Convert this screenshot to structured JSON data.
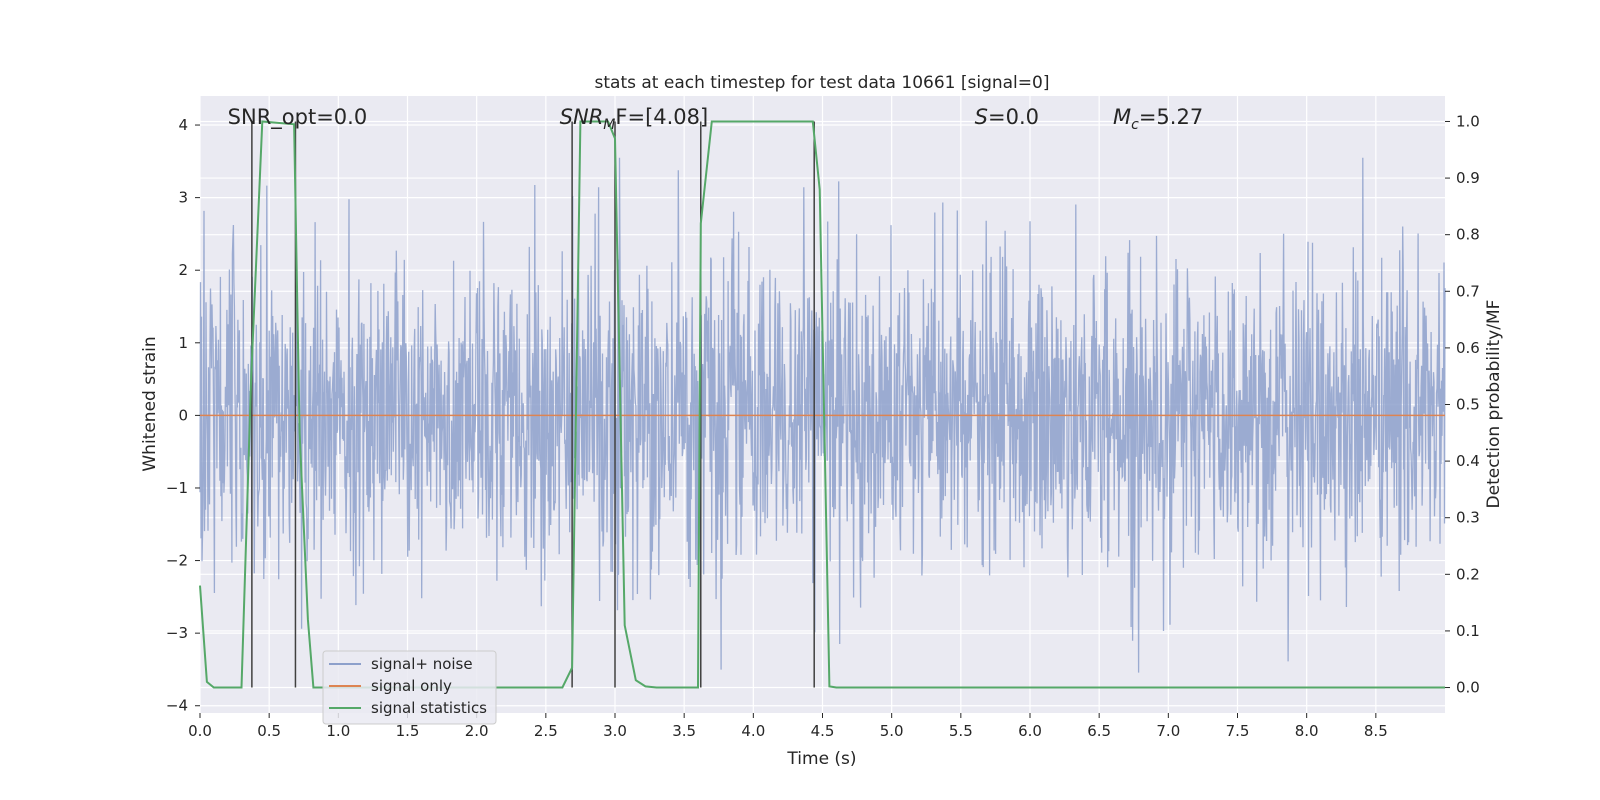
{
  "chart_data": {
    "type": "line",
    "title": "stats at each timestep for test data 10661 [signal=0]",
    "xlabel": "Time (s)",
    "ylabel": "Whitened strain",
    "y2label": "Detection probability/MF",
    "xlim": [
      0,
      9.0
    ],
    "ylim": [
      -4.1,
      4.4
    ],
    "y2lim": [
      -0.045,
      1.045
    ],
    "xticks": [
      "0.0",
      "0.5",
      "1.0",
      "1.5",
      "2.0",
      "2.5",
      "3.0",
      "3.5",
      "4.0",
      "4.5",
      "5.0",
      "5.5",
      "6.0",
      "6.5",
      "7.0",
      "7.5",
      "8.0",
      "8.5"
    ],
    "yticks": [
      "−4",
      "−3",
      "−2",
      "−1",
      "0",
      "1",
      "2",
      "3",
      "4"
    ],
    "y2ticks": [
      "0.0",
      "0.1",
      "0.2",
      "0.3",
      "0.4",
      "0.5",
      "0.6",
      "0.7",
      "0.8",
      "0.9",
      "1.0"
    ],
    "grid": true,
    "legend_position": "lower-left",
    "colors": {
      "noise": "#8da0cb",
      "signal_only": "#dd8452",
      "statistics": "#55a868",
      "vlines": "#404040",
      "plot_bg": "#eaeaf2",
      "grid": "#ffffff"
    },
    "series": [
      {
        "name": "signal+ noise",
        "kind": "noise",
        "description_value_range": [
          -3.7,
          3.55
        ]
      },
      {
        "name": "signal only",
        "kind": "constant",
        "y": 0.0
      },
      {
        "name": "signal statistics",
        "axis": "right",
        "x": [
          0.0,
          0.05,
          0.1,
          0.3,
          0.37,
          0.45,
          0.68,
          0.72,
          0.78,
          0.82,
          1.0,
          1.5,
          2.0,
          2.5,
          2.62,
          2.69,
          2.75,
          2.95,
          3.0,
          3.07,
          3.15,
          3.22,
          3.3,
          3.55,
          3.6,
          3.62,
          3.7,
          4.43,
          4.48,
          4.55,
          4.6,
          5.0,
          6.0,
          7.0,
          8.0,
          9.0
        ],
        "y": [
          0.18,
          0.01,
          0.0,
          0.0,
          0.55,
          1.0,
          0.995,
          0.45,
          0.12,
          0.0,
          0.0,
          0.0,
          0.0,
          0.0,
          0.0,
          0.035,
          1.0,
          1.0,
          0.97,
          0.11,
          0.013,
          0.002,
          0.0,
          0.0,
          0.0,
          0.82,
          1.0,
          1.0,
          0.88,
          0.002,
          0.0,
          0.0,
          0.0,
          0.0,
          0.0,
          0.0
        ]
      }
    ],
    "vlines": [
      0.375,
      0.69,
      2.69,
      3.0,
      3.62,
      4.44
    ],
    "annotations": [
      {
        "text": "SNR_opt=0.0",
        "x": 0.2
      },
      {
        "text": "F=[4.08]",
        "math": "SNR",
        "sub": "M",
        "x": 2.6
      },
      {
        "text": "=0.0",
        "math": "S",
        "x": 5.6
      },
      {
        "text": "=5.27",
        "math": "M",
        "sub": "c",
        "x": 6.6
      }
    ]
  }
}
